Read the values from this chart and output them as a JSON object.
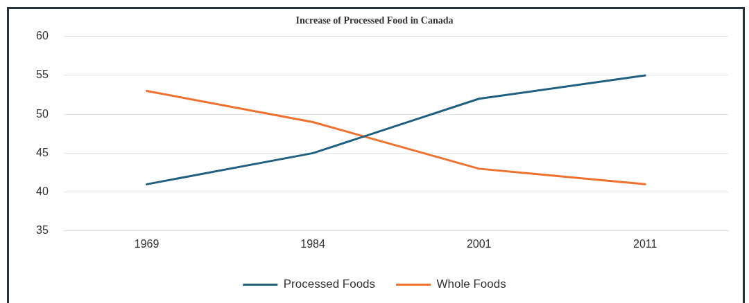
{
  "chart_data": {
    "type": "line",
    "title": "Increase of Processed Food in Canada",
    "categories": [
      "1969",
      "1984",
      "2001",
      "2011"
    ],
    "series": [
      {
        "name": "Processed Foods",
        "color": "#1f5f80",
        "values": [
          41,
          45,
          52,
          55
        ]
      },
      {
        "name": "Whole Foods",
        "color": "#f0702e",
        "values": [
          53,
          49,
          43,
          41
        ]
      }
    ],
    "ylim": [
      35,
      60
    ],
    "yticks": [
      35,
      40,
      45,
      50,
      55,
      60
    ],
    "grid": "y",
    "legend": "bottom",
    "marker": "none",
    "line_style": "solid"
  }
}
